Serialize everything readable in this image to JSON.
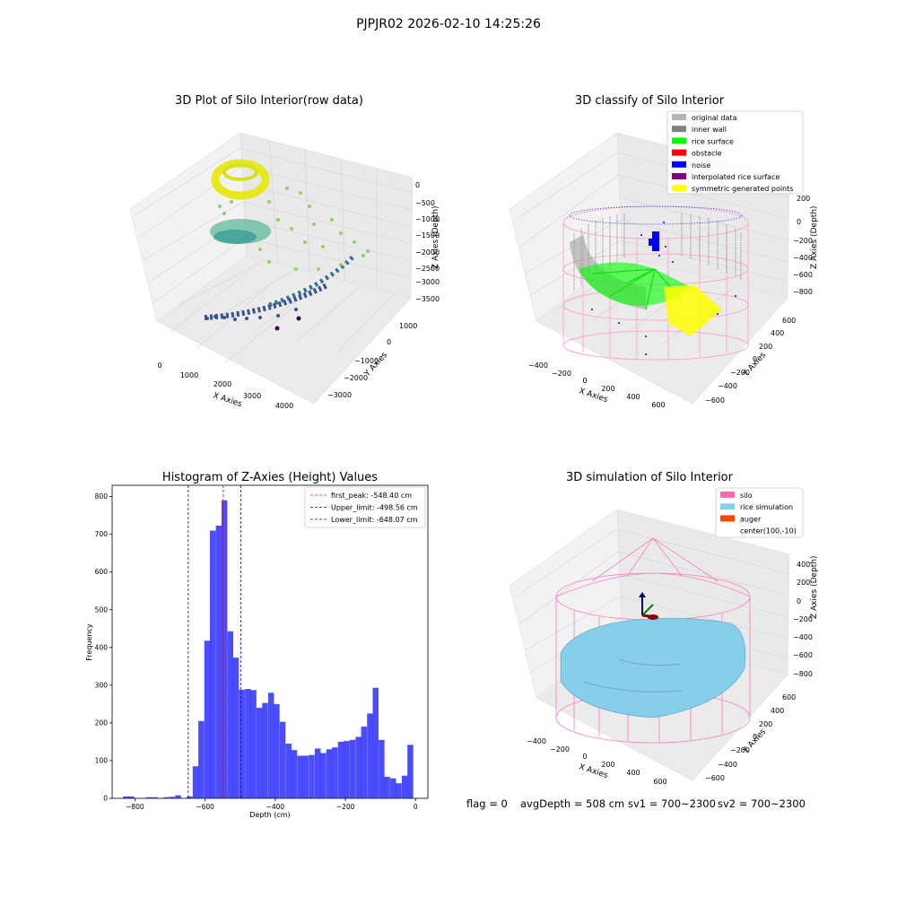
{
  "figure": {
    "suptitle": "PJPJR02 2026-02-10 14:25:26",
    "footer": {
      "flag": "flag = 0",
      "avg_depth": "avgDepth = 508 cm",
      "sv1": "sv1 = 700~2300",
      "sv2": "sv2 = 700~2300"
    }
  },
  "chart_data": [
    {
      "type": "scatter",
      "projection": "3d",
      "title": "3D Plot of Silo Interior(row data)",
      "xlabel": "X Axies",
      "ylabel": "Y Axies",
      "zlabel": "Z Axies (Depth)",
      "x_ticks": [
        "0",
        "1000",
        "2000",
        "3000",
        "4000"
      ],
      "y_ticks": [
        "1000",
        "0",
        "−1000",
        "−2000",
        "−3000"
      ],
      "z_ticks": [
        "0",
        "−500",
        "−1000",
        "−1500",
        "−2000",
        "−2500",
        "−3000",
        "−3500"
      ],
      "colormap": "viridis",
      "grid": true
    },
    {
      "type": "scatter",
      "projection": "3d",
      "title": "3D classify of Silo Interior",
      "xlabel": "X Axies",
      "ylabel": "Y Axies",
      "zlabel": "Z Axies (Depth)",
      "x_ticks": [
        "−400",
        "−200",
        "0",
        "200",
        "400",
        "600"
      ],
      "y_ticks": [
        "600",
        "400",
        "200",
        "0",
        "−200",
        "−400",
        "−600"
      ],
      "z_ticks": [
        "200",
        "0",
        "−200",
        "−400",
        "−600",
        "−800"
      ],
      "legend": {
        "position": "upper right",
        "entries": [
          {
            "label": "original data",
            "color": "#b5b5b5"
          },
          {
            "label": "inner wall",
            "color": "#808080"
          },
          {
            "label": "rice surface",
            "color": "#00ff00"
          },
          {
            "label": "obstacle",
            "color": "#ff0000"
          },
          {
            "label": "noise",
            "color": "#0000ff"
          },
          {
            "label": "interpolated rice surface",
            "color": "#800080"
          },
          {
            "label": "symmetric generated points",
            "color": "#ffff00"
          }
        ]
      },
      "grid": true
    },
    {
      "type": "bar",
      "title": "Histogram of Z-Axies (Height) Values",
      "xlabel": "Depth (cm)",
      "ylabel": "Frequency",
      "xlim": [
        -865,
        35
      ],
      "ylim": [
        0,
        830
      ],
      "x_ticks": [
        -800,
        -600,
        -400,
        -200,
        0
      ],
      "x_tick_labels": [
        "−800",
        "−600",
        "−400",
        "−200",
        "0"
      ],
      "y_ticks": [
        0,
        100,
        200,
        300,
        400,
        500,
        600,
        700,
        800
      ],
      "y_tick_labels": [
        "0",
        "100",
        "200",
        "300",
        "400",
        "500",
        "600",
        "700",
        "800"
      ],
      "bar_color": "#0000ff",
      "bar_width": 16.6,
      "bars": [
        {
          "x": -826,
          "value": 5
        },
        {
          "x": -810,
          "value": 5
        },
        {
          "x": -760,
          "value": 3
        },
        {
          "x": -743,
          "value": 3
        },
        {
          "x": -710,
          "value": 3
        },
        {
          "x": -694,
          "value": 4
        },
        {
          "x": -677,
          "value": 8
        },
        {
          "x": -644,
          "value": 5
        },
        {
          "x": -627,
          "value": 85
        },
        {
          "x": -611,
          "value": 205
        },
        {
          "x": -594,
          "value": 418
        },
        {
          "x": -578,
          "value": 710
        },
        {
          "x": -561,
          "value": 723
        },
        {
          "x": -545,
          "value": 790
        },
        {
          "x": -528,
          "value": 443
        },
        {
          "x": -512,
          "value": 373
        },
        {
          "x": -495,
          "value": 288
        },
        {
          "x": -478,
          "value": 290
        },
        {
          "x": -462,
          "value": 287
        },
        {
          "x": -445,
          "value": 240
        },
        {
          "x": -429,
          "value": 253
        },
        {
          "x": -412,
          "value": 280
        },
        {
          "x": -396,
          "value": 250
        },
        {
          "x": -379,
          "value": 203
        },
        {
          "x": -362,
          "value": 145
        },
        {
          "x": -346,
          "value": 128
        },
        {
          "x": -329,
          "value": 113
        },
        {
          "x": -313,
          "value": 113
        },
        {
          "x": -296,
          "value": 115
        },
        {
          "x": -279,
          "value": 132
        },
        {
          "x": -263,
          "value": 120
        },
        {
          "x": -246,
          "value": 130
        },
        {
          "x": -230,
          "value": 135
        },
        {
          "x": -213,
          "value": 150
        },
        {
          "x": -197,
          "value": 152
        },
        {
          "x": -180,
          "value": 155
        },
        {
          "x": -163,
          "value": 163
        },
        {
          "x": -147,
          "value": 190
        },
        {
          "x": -130,
          "value": 225
        },
        {
          "x": -114,
          "value": 293
        },
        {
          "x": -97,
          "value": 155
        },
        {
          "x": -81,
          "value": 57
        },
        {
          "x": -64,
          "value": 53
        },
        {
          "x": -48,
          "value": 40
        },
        {
          "x": -31,
          "value": 60
        },
        {
          "x": -15,
          "value": 142
        }
      ],
      "vlines": [
        {
          "x": -548.4,
          "color": "#ff0000",
          "label": "first_peak: -548.40 cm"
        },
        {
          "x": -498.56,
          "color": "#0000cc",
          "label": "Upper_limit: -498.56 cm"
        },
        {
          "x": -648.07,
          "color": "#0000cc",
          "label": "Lower_limit: -648.07 cm"
        }
      ],
      "legend": {
        "position": "upper right"
      },
      "grid": false
    },
    {
      "type": "surface",
      "projection": "3d",
      "title": "3D simulation of Silo Interior",
      "xlabel": "X Axies",
      "ylabel": "Y Axies",
      "zlabel": "Z Axies (Depth)",
      "x_ticks": [
        "−400",
        "−200",
        "0",
        "200",
        "400",
        "600"
      ],
      "y_ticks": [
        "600",
        "400",
        "200",
        "0",
        "−200",
        "−400",
        "−600"
      ],
      "z_ticks": [
        "400",
        "200",
        "0",
        "−200",
        "−400",
        "−600",
        "−800"
      ],
      "legend": {
        "position": "upper right",
        "entries": [
          {
            "label": "silo",
            "color": "#ff69b4"
          },
          {
            "label": "rice simulation",
            "color": "#87ceeb"
          },
          {
            "label": "auger",
            "color": "#ff4500"
          },
          {
            "label": "center(100,-10)",
            "color": ""
          }
        ]
      },
      "grid": true
    }
  ]
}
